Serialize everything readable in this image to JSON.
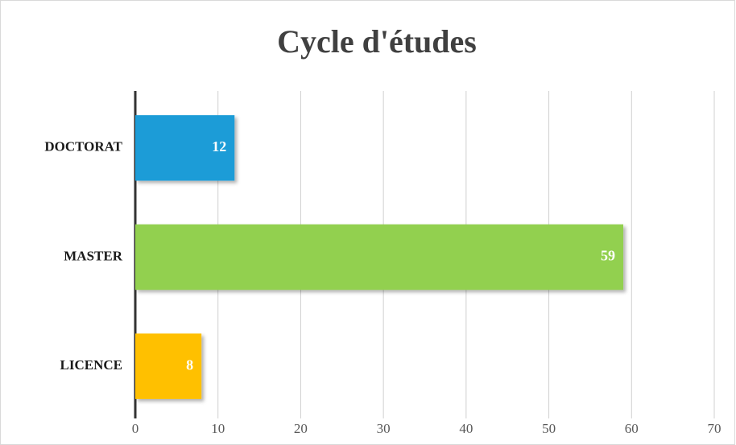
{
  "chart_data": {
    "type": "bar",
    "orientation": "horizontal",
    "title": "Cycle d'études",
    "categories": [
      "DOCTORAT",
      "MASTER",
      "LICENCE"
    ],
    "values": [
      12,
      59,
      8
    ],
    "colors": [
      "#1e9cd7",
      "#92d050",
      "#ffc000"
    ],
    "xlim": [
      0,
      70
    ],
    "xticks": [
      0,
      10,
      20,
      30,
      40,
      50,
      60,
      70
    ],
    "grid": true
  }
}
